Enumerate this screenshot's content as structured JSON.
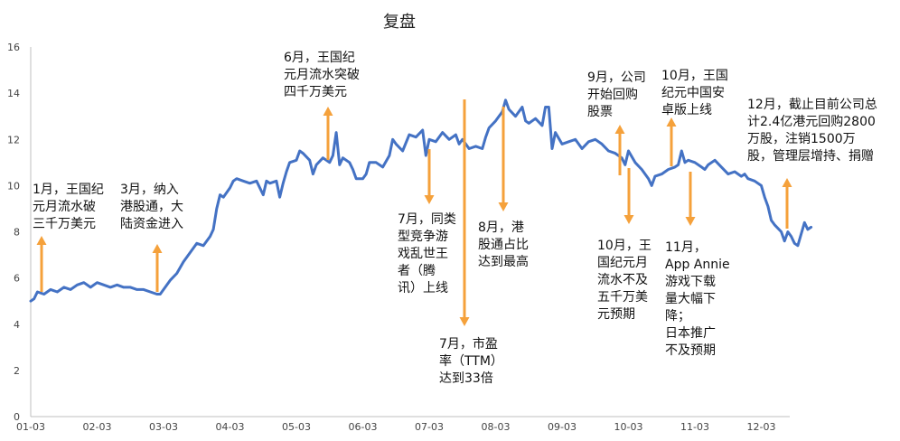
{
  "chart_data": {
    "type": "line",
    "title": "复盘",
    "xlabel": "",
    "ylabel": "",
    "ylim": [
      0,
      16
    ],
    "grid": false,
    "yticks": [
      "0",
      "2",
      "4",
      "6",
      "8",
      "10",
      "12",
      "14",
      "16"
    ],
    "xticks": [
      "01-03",
      "02-03",
      "03-03",
      "04-03",
      "05-03",
      "06-03",
      "07-03",
      "08-03",
      "09-03",
      "10-03",
      "11-03",
      "12-03"
    ],
    "colors": {
      "line": "#4472c4",
      "arrow": "#f5a13b"
    },
    "series": [
      {
        "name": "",
        "points": [
          [
            0.0,
            5.0
          ],
          [
            0.05,
            5.1
          ],
          [
            0.1,
            5.4
          ],
          [
            0.2,
            5.3
          ],
          [
            0.3,
            5.5
          ],
          [
            0.4,
            5.4
          ],
          [
            0.5,
            5.6
          ],
          [
            0.6,
            5.5
          ],
          [
            0.7,
            5.7
          ],
          [
            0.8,
            5.8
          ],
          [
            0.9,
            5.6
          ],
          [
            1.0,
            5.8
          ],
          [
            1.1,
            5.7
          ],
          [
            1.2,
            5.6
          ],
          [
            1.3,
            5.7
          ],
          [
            1.4,
            5.6
          ],
          [
            1.5,
            5.6
          ],
          [
            1.6,
            5.5
          ],
          [
            1.7,
            5.5
          ],
          [
            1.8,
            5.4
          ],
          [
            1.9,
            5.3
          ],
          [
            1.95,
            5.3
          ],
          [
            2.0,
            5.5
          ],
          [
            2.1,
            5.9
          ],
          [
            2.2,
            6.2
          ],
          [
            2.3,
            6.7
          ],
          [
            2.4,
            7.1
          ],
          [
            2.5,
            7.5
          ],
          [
            2.6,
            7.4
          ],
          [
            2.7,
            7.8
          ],
          [
            2.75,
            8.1
          ],
          [
            2.8,
            9.0
          ],
          [
            2.85,
            9.6
          ],
          [
            2.9,
            9.5
          ],
          [
            3.0,
            9.9
          ],
          [
            3.05,
            10.2
          ],
          [
            3.1,
            10.3
          ],
          [
            3.2,
            10.2
          ],
          [
            3.3,
            10.1
          ],
          [
            3.4,
            10.2
          ],
          [
            3.5,
            9.6
          ],
          [
            3.55,
            10.2
          ],
          [
            3.6,
            10.1
          ],
          [
            3.7,
            10.2
          ],
          [
            3.75,
            9.5
          ],
          [
            3.8,
            10.1
          ],
          [
            3.85,
            10.6
          ],
          [
            3.9,
            11.0
          ],
          [
            4.0,
            11.1
          ],
          [
            4.05,
            11.5
          ],
          [
            4.1,
            11.4
          ],
          [
            4.2,
            11.1
          ],
          [
            4.25,
            10.5
          ],
          [
            4.3,
            10.9
          ],
          [
            4.4,
            11.2
          ],
          [
            4.5,
            11.0
          ],
          [
            4.55,
            11.3
          ],
          [
            4.6,
            12.3
          ],
          [
            4.65,
            10.9
          ],
          [
            4.7,
            11.2
          ],
          [
            4.8,
            11.0
          ],
          [
            4.85,
            10.7
          ],
          [
            4.9,
            10.3
          ],
          [
            5.0,
            10.3
          ],
          [
            5.05,
            10.5
          ],
          [
            5.1,
            11.0
          ],
          [
            5.2,
            11.0
          ],
          [
            5.3,
            10.8
          ],
          [
            5.4,
            11.3
          ],
          [
            5.45,
            12.0
          ],
          [
            5.5,
            11.8
          ],
          [
            5.6,
            11.5
          ],
          [
            5.7,
            12.2
          ],
          [
            5.8,
            12.1
          ],
          [
            5.9,
            12.4
          ],
          [
            5.95,
            11.3
          ],
          [
            6.0,
            12.0
          ],
          [
            6.1,
            11.9
          ],
          [
            6.2,
            12.3
          ],
          [
            6.3,
            12.0
          ],
          [
            6.4,
            12.2
          ],
          [
            6.45,
            11.8
          ],
          [
            6.5,
            12.0
          ],
          [
            6.6,
            11.6
          ],
          [
            6.7,
            11.7
          ],
          [
            6.8,
            11.6
          ],
          [
            6.85,
            12.1
          ],
          [
            6.9,
            12.5
          ],
          [
            7.0,
            12.8
          ],
          [
            7.1,
            13.2
          ],
          [
            7.15,
            13.7
          ],
          [
            7.2,
            13.3
          ],
          [
            7.3,
            13.0
          ],
          [
            7.4,
            13.4
          ],
          [
            7.45,
            12.8
          ],
          [
            7.5,
            12.7
          ],
          [
            7.6,
            12.9
          ],
          [
            7.7,
            12.6
          ],
          [
            7.75,
            13.4
          ],
          [
            7.8,
            13.4
          ],
          [
            7.85,
            11.6
          ],
          [
            7.9,
            12.3
          ],
          [
            8.0,
            11.8
          ],
          [
            8.1,
            11.9
          ],
          [
            8.2,
            12.0
          ],
          [
            8.3,
            11.6
          ],
          [
            8.4,
            11.9
          ],
          [
            8.5,
            12.0
          ],
          [
            8.6,
            11.8
          ],
          [
            8.7,
            11.5
          ],
          [
            8.8,
            11.4
          ],
          [
            8.9,
            11.2
          ],
          [
            8.95,
            10.9
          ],
          [
            9.0,
            11.5
          ],
          [
            9.1,
            11.0
          ],
          [
            9.2,
            10.7
          ],
          [
            9.3,
            10.3
          ],
          [
            9.35,
            10.0
          ],
          [
            9.4,
            10.4
          ],
          [
            9.5,
            10.5
          ],
          [
            9.6,
            10.7
          ],
          [
            9.7,
            10.8
          ],
          [
            9.75,
            10.9
          ],
          [
            9.8,
            11.5
          ],
          [
            9.85,
            11.0
          ],
          [
            9.9,
            11.1
          ],
          [
            10.0,
            11.0
          ],
          [
            10.1,
            10.8
          ],
          [
            10.15,
            10.7
          ],
          [
            10.2,
            10.9
          ],
          [
            10.3,
            11.1
          ],
          [
            10.4,
            10.8
          ],
          [
            10.5,
            10.5
          ],
          [
            10.6,
            10.6
          ],
          [
            10.7,
            10.4
          ],
          [
            10.75,
            10.5
          ],
          [
            10.8,
            10.3
          ],
          [
            10.9,
            10.2
          ],
          [
            11.0,
            10.0
          ],
          [
            11.05,
            9.5
          ],
          [
            11.1,
            9.1
          ],
          [
            11.15,
            8.5
          ],
          [
            11.2,
            8.3
          ],
          [
            11.3,
            8.0
          ],
          [
            11.35,
            7.6
          ],
          [
            11.4,
            8.0
          ],
          [
            11.45,
            7.8
          ],
          [
            11.5,
            7.5
          ],
          [
            11.55,
            7.4
          ],
          [
            11.6,
            7.9
          ],
          [
            11.65,
            8.4
          ],
          [
            11.7,
            8.1
          ],
          [
            11.75,
            8.2
          ]
        ]
      }
    ],
    "annotations": [
      {
        "lines": [
          "1月，王国纪",
          "元月流水破",
          "三千万美元"
        ]
      },
      {
        "lines": [
          "3月，纳入",
          "港股通，大",
          "陆资金进入"
        ]
      },
      {
        "lines": [
          "6月，王国纪",
          "元月流水突破",
          "四千万美元"
        ]
      },
      {
        "lines": [
          "7月，同类",
          "型竞争游",
          "戏乱世王",
          "者（腾",
          "讯）上线"
        ]
      },
      {
        "lines": [
          "7月，市盈",
          "率（TTM）",
          "达到33倍"
        ]
      },
      {
        "lines": [
          "8月，港",
          "股通占比",
          "达到最高"
        ]
      },
      {
        "lines": [
          "9月，公司",
          "开始回购",
          "股票"
        ]
      },
      {
        "lines": [
          "10月，王国",
          "纪元中国安",
          "卓版上线"
        ]
      },
      {
        "lines": [
          "10月，王",
          "国纪元月",
          "流水不及",
          "五千万美",
          "元预期"
        ]
      },
      {
        "lines": [
          "11月，",
          "App Annie",
          "游戏下载",
          "量大幅下",
          "降；",
          "日本推广",
          "不及预期"
        ]
      },
      {
        "lines": [
          "12月，截止目前公司总",
          "计2.4亿港元回购2800",
          "万股，注销1500万",
          "股，管理层增持、捐赠"
        ]
      }
    ]
  }
}
